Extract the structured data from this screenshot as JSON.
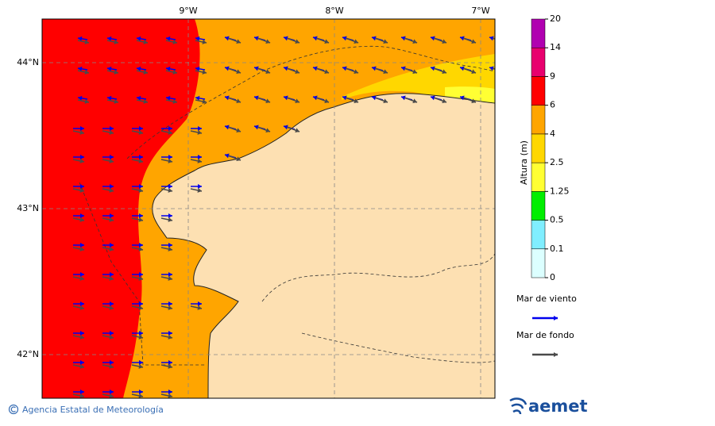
{
  "map": {
    "lon_labels": [
      "9°W",
      "8°W",
      "7°W"
    ],
    "lat_labels": [
      "44°N",
      "43°N",
      "42°N"
    ]
  },
  "colorbar": {
    "title": "Altura (m)",
    "levels": [
      0,
      0.1,
      0.5,
      1.25,
      2.5,
      4,
      6,
      9,
      14,
      20
    ],
    "colors": [
      "#dcffff",
      "#80eeff",
      "#00ee00",
      "#ffff33",
      "#ffd700",
      "#ffa500",
      "#ff0000",
      "#e8006e",
      "#b000b0"
    ]
  },
  "legend": [
    {
      "label": "Mar de viento",
      "color": "#0000ee"
    },
    {
      "label": "Mar de fondo",
      "color": "#4a4a4a"
    }
  ],
  "footer": {
    "credit": "Agencia Estatal de Meteorología",
    "logo": "aemet"
  }
}
